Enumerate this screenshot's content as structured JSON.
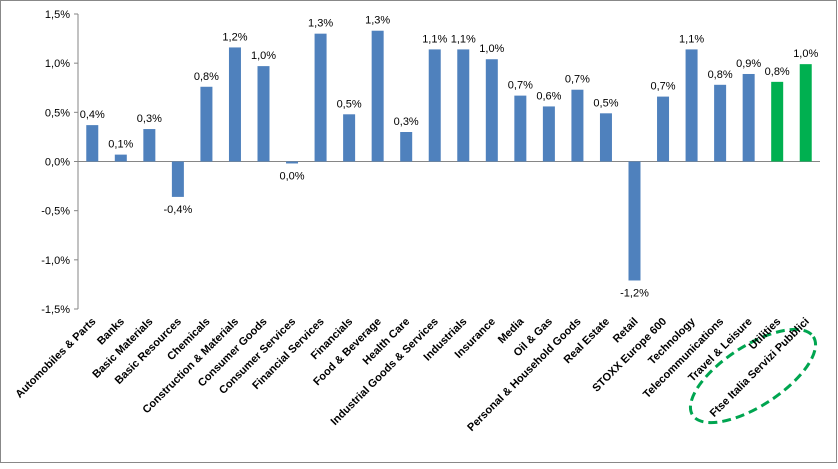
{
  "chart_data": {
    "type": "bar",
    "categories": [
      "Automobiles & Parts",
      "Banks",
      "Basic Materials",
      "Basic Resources",
      "Chemicals",
      "Construction & Materials",
      "Consumer Goods",
      "Consumer Services",
      "Financial Services",
      "Financials",
      "Food & Beverage",
      "Health Care",
      "Industrial Goods & Services",
      "Industrials",
      "Insurance",
      "Media",
      "Oil & Gas",
      "Personal & Household Goods",
      "Real Estate",
      "Retail",
      "STOXX Europe 600",
      "Technology",
      "Telecommunications",
      "Travel & Leisure",
      "Utilities",
      "Ftse Italia Servizi Pubblici"
    ],
    "values": [
      0.37,
      0.07,
      0.33,
      -0.36,
      0.76,
      1.16,
      0.97,
      -0.02,
      1.3,
      0.48,
      1.33,
      0.3,
      1.14,
      1.14,
      1.04,
      0.67,
      0.56,
      0.73,
      0.49,
      -1.21,
      0.66,
      1.14,
      0.78,
      0.89,
      0.81,
      0.99
    ],
    "value_labels": [
      "0,4%",
      "0,1%",
      "0,3%",
      "-0,4%",
      "0,8%",
      "1,2%",
      "1,0%",
      "0,0%",
      "1,3%",
      "0,5%",
      "1,3%",
      "0,3%",
      "1,1%",
      "1,1%",
      "1,0%",
      "0,7%",
      "0,6%",
      "0,7%",
      "0,5%",
      "-1,2%",
      "0,7%",
      "1,1%",
      "0,8%",
      "0,9%",
      "0,8%",
      "1,0%"
    ],
    "colors": [
      "#4f81bd",
      "#4f81bd",
      "#4f81bd",
      "#4f81bd",
      "#4f81bd",
      "#4f81bd",
      "#4f81bd",
      "#4f81bd",
      "#4f81bd",
      "#4f81bd",
      "#4f81bd",
      "#4f81bd",
      "#4f81bd",
      "#4f81bd",
      "#4f81bd",
      "#4f81bd",
      "#4f81bd",
      "#4f81bd",
      "#4f81bd",
      "#4f81bd",
      "#4f81bd",
      "#4f81bd",
      "#4f81bd",
      "#4f81bd",
      "#00b050",
      "#00b050"
    ],
    "ylim": [
      -1.5,
      1.5
    ],
    "yticks": [
      {
        "value": -1.5,
        "label": "-1,5%"
      },
      {
        "value": -1,
        "label": "-1,0%"
      },
      {
        "value": -0.5,
        "label": "-0,5%"
      },
      {
        "value": 0,
        "label": "0,0%"
      },
      {
        "value": 0.5,
        "label": "0,5%"
      },
      {
        "value": 1,
        "label": "1,0%"
      },
      {
        "value": 1.5,
        "label": "1,5%"
      }
    ],
    "grid": false
  }
}
